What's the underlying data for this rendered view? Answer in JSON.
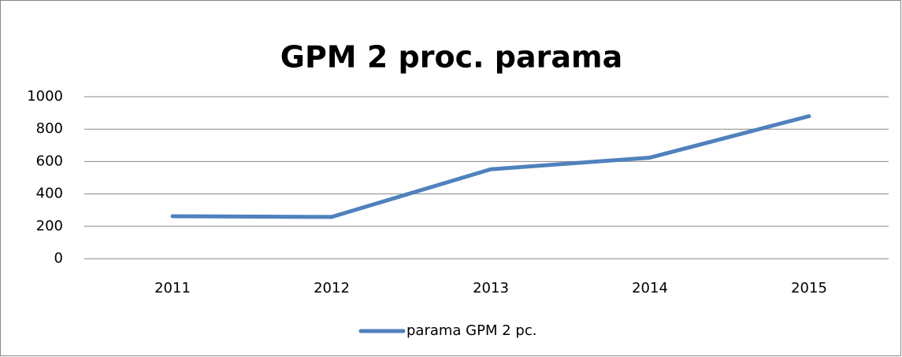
{
  "chart_data": {
    "type": "line",
    "title": "GPM 2 proc. parama",
    "categories": [
      "2011",
      "2012",
      "2013",
      "2014",
      "2015"
    ],
    "series": [
      {
        "name": "parama GPM 2 pc.",
        "color": "#4f81bd",
        "values": [
          262,
          258,
          552,
          624,
          880
        ]
      }
    ],
    "ylim": [
      0,
      1000
    ],
    "yticks": [
      0,
      200,
      400,
      600,
      800,
      1000
    ],
    "grid": true,
    "legend": "bottom"
  }
}
